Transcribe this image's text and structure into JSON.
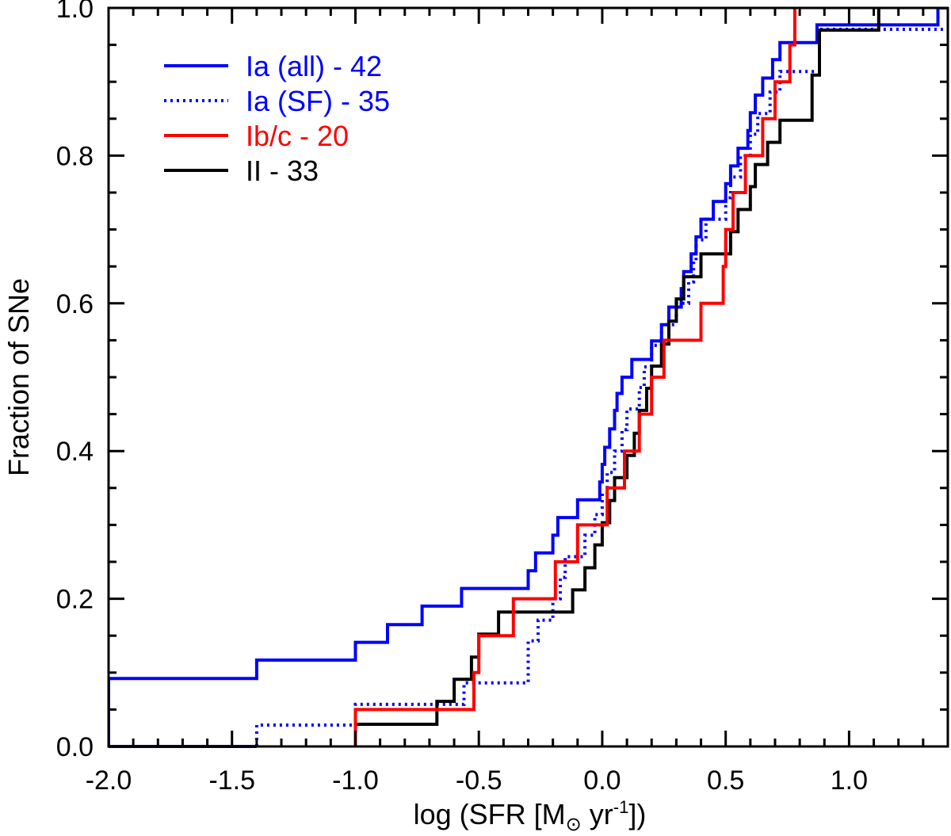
{
  "chart_data": {
    "type": "line",
    "step": true,
    "xlabel": {
      "prefix": "log (SFR [M",
      "subscript": "⊙",
      "middle": " yr",
      "superscript": "-1",
      "suffix": "])"
    },
    "ylabel": "Fraction of SNe",
    "xlim": [
      -2.0,
      1.4
    ],
    "ylim": [
      0.0,
      1.0
    ],
    "x_ticks": [
      -2.0,
      -1.5,
      -1.0,
      -0.5,
      0.0,
      0.5,
      1.0
    ],
    "x_tick_labels": [
      "-2.0",
      "-1.5",
      "-1.0",
      "-0.5",
      "0.0",
      "0.5",
      "1.0"
    ],
    "y_ticks": [
      0.0,
      0.2,
      0.4,
      0.6,
      0.8,
      1.0
    ],
    "y_tick_labels": [
      "0.0",
      "0.2",
      "0.4",
      "0.6",
      "0.8",
      "1.0"
    ],
    "legend_position": "top-left",
    "series": [
      {
        "name": "Ia (all) - 42",
        "color": "#0000ff",
        "style": "solid",
        "x": [
          -2.0,
          -1.4,
          -1.0,
          -0.87,
          -0.73,
          -0.57,
          -0.3,
          -0.27,
          -0.2,
          -0.18,
          -0.1,
          -0.01,
          0.0,
          0.01,
          0.03,
          0.05,
          0.06,
          0.08,
          0.12,
          0.2,
          0.24,
          0.27,
          0.32,
          0.33,
          0.36,
          0.38,
          0.4,
          0.45,
          0.5,
          0.52,
          0.55,
          0.59,
          0.6,
          0.62,
          0.65,
          0.69,
          0.72,
          0.87,
          0.89,
          1.36,
          1.4
        ],
        "y": [
          0.092,
          0.117,
          0.141,
          0.165,
          0.19,
          0.214,
          0.238,
          0.262,
          0.286,
          0.31,
          0.334,
          0.358,
          0.382,
          0.405,
          0.43,
          0.455,
          0.478,
          0.5,
          0.524,
          0.549,
          0.571,
          0.595,
          0.62,
          0.643,
          0.667,
          0.69,
          0.714,
          0.738,
          0.762,
          0.786,
          0.81,
          0.834,
          0.858,
          0.882,
          0.905,
          0.93,
          0.953,
          0.977,
          0.977,
          1.0,
          1.0
        ]
      },
      {
        "name": "Ia (SF) - 35",
        "color": "#0000ff",
        "style": "dotted",
        "x": [
          -1.4,
          -1.0,
          -0.56,
          -0.3,
          -0.26,
          -0.2,
          -0.17,
          -0.15,
          -0.07,
          -0.03,
          0.0,
          0.02,
          0.05,
          0.08,
          0.1,
          0.15,
          0.17,
          0.2,
          0.22,
          0.24,
          0.3,
          0.35,
          0.37,
          0.38,
          0.42,
          0.5,
          0.52,
          0.56,
          0.6,
          0.63,
          0.68,
          0.72,
          0.88,
          1.38
        ],
        "y": [
          0.029,
          0.057,
          0.086,
          0.143,
          0.171,
          0.2,
          0.229,
          0.257,
          0.286,
          0.314,
          0.343,
          0.371,
          0.4,
          0.429,
          0.457,
          0.486,
          0.514,
          0.543,
          0.543,
          0.571,
          0.6,
          0.629,
          0.657,
          0.686,
          0.714,
          0.743,
          0.771,
          0.8,
          0.829,
          0.857,
          0.886,
          0.914,
          0.971,
          0.971
        ]
      },
      {
        "name": "Ib/c - 20",
        "color": "#ff0000",
        "style": "solid",
        "x": [
          -1.0,
          -0.52,
          -0.5,
          -0.36,
          -0.19,
          -0.1,
          0.02,
          0.09,
          0.15,
          0.2,
          0.25,
          0.4,
          0.49,
          0.5,
          0.53,
          0.58,
          0.65,
          0.7,
          0.76,
          0.78
        ],
        "y": [
          0.05,
          0.1,
          0.15,
          0.2,
          0.25,
          0.3,
          0.35,
          0.4,
          0.45,
          0.5,
          0.55,
          0.6,
          0.65,
          0.7,
          0.75,
          0.8,
          0.85,
          0.9,
          0.95,
          1.0
        ]
      },
      {
        "name": "II - 33",
        "color": "#000000",
        "style": "solid",
        "x": [
          -1.0,
          -0.67,
          -0.6,
          -0.53,
          -0.5,
          -0.42,
          -0.12,
          -0.07,
          -0.03,
          0.0,
          0.03,
          0.05,
          0.1,
          0.13,
          0.15,
          0.18,
          0.2,
          0.24,
          0.27,
          0.3,
          0.33,
          0.4,
          0.52,
          0.55,
          0.6,
          0.62,
          0.67,
          0.72,
          0.85,
          0.88,
          1.12
        ],
        "y": [
          0.03,
          0.061,
          0.091,
          0.121,
          0.152,
          0.182,
          0.212,
          0.242,
          0.273,
          0.303,
          0.333,
          0.364,
          0.394,
          0.424,
          0.455,
          0.485,
          0.515,
          0.545,
          0.576,
          0.606,
          0.636,
          0.667,
          0.697,
          0.727,
          0.758,
          0.788,
          0.818,
          0.848,
          0.909,
          0.97,
          1.0
        ]
      }
    ]
  }
}
